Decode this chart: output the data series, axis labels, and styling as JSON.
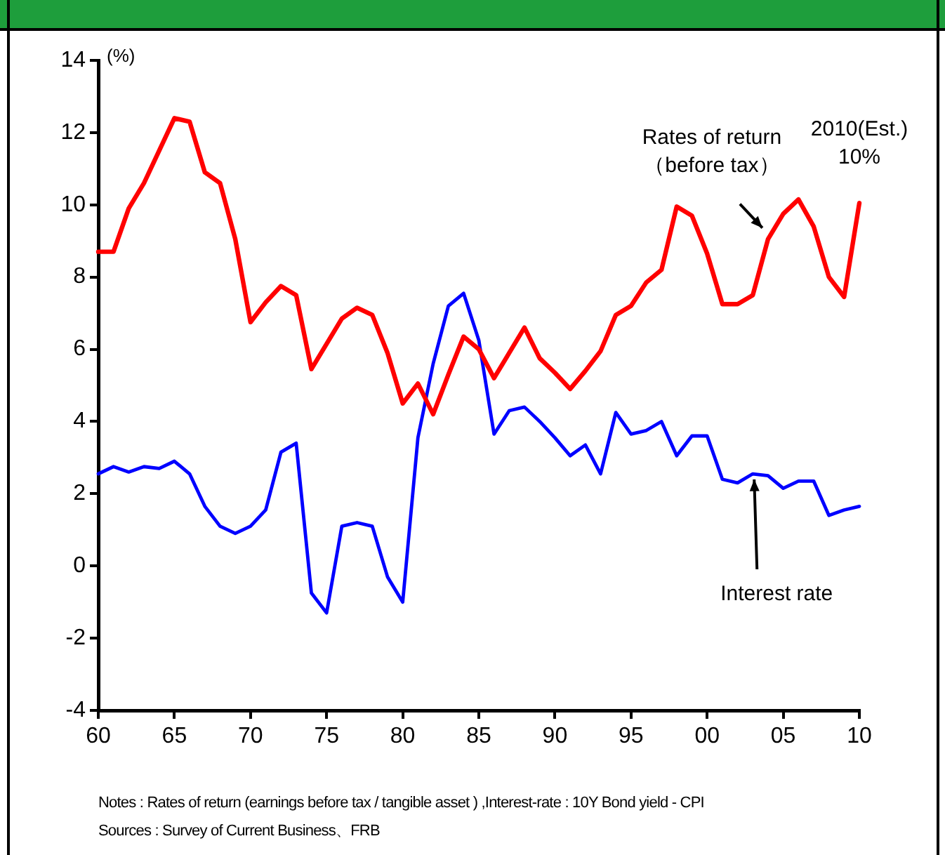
{
  "chart_data": {
    "type": "line",
    "ylabel": "(%)",
    "x": [
      1960,
      1961,
      1962,
      1963,
      1964,
      1965,
      1966,
      1967,
      1968,
      1969,
      1970,
      1971,
      1972,
      1973,
      1974,
      1975,
      1976,
      1977,
      1978,
      1979,
      1980,
      1981,
      1982,
      1983,
      1984,
      1985,
      1986,
      1987,
      1988,
      1989,
      1990,
      1991,
      1992,
      1993,
      1994,
      1995,
      1996,
      1997,
      1998,
      1999,
      2000,
      2001,
      2002,
      2003,
      2004,
      2005,
      2006,
      2007,
      2008,
      2009,
      2010
    ],
    "series": [
      {
        "color": "#ff0000",
        "values": [
          8.7,
          8.7,
          9.9,
          10.6,
          11.5,
          12.4,
          12.3,
          10.9,
          10.6,
          9.05,
          6.75,
          7.3,
          7.75,
          7.5,
          5.45,
          6.15,
          6.85,
          7.15,
          6.95,
          5.9,
          4.5,
          5.05,
          4.2,
          5.3,
          6.35,
          6.0,
          5.2,
          5.9,
          6.6,
          5.75,
          5.35,
          4.9,
          5.4,
          5.95,
          6.95,
          7.2,
          7.85,
          8.2,
          9.95,
          9.7,
          8.65,
          7.25,
          7.25,
          7.5,
          9.05,
          9.75,
          10.15,
          9.4,
          8.0,
          7.45,
          10.05
        ]
      },
      {
        "color": "#0000ff",
        "values": [
          2.55,
          2.75,
          2.6,
          2.75,
          2.7,
          2.9,
          2.55,
          1.65,
          1.1,
          0.9,
          1.1,
          1.55,
          3.15,
          3.4,
          -0.75,
          -1.3,
          1.1,
          1.2,
          1.1,
          -0.3,
          -1.0,
          3.55,
          5.6,
          7.2,
          7.55,
          6.25,
          3.65,
          4.3,
          4.4,
          4.0,
          3.55,
          3.05,
          3.35,
          2.55,
          4.25,
          3.65,
          3.75,
          4.0,
          3.05,
          3.6,
          3.6,
          2.4,
          2.3,
          2.55,
          2.5,
          2.15,
          2.35,
          2.35,
          1.4,
          1.55,
          1.65
        ]
      }
    ],
    "xlim": [
      1960,
      2010
    ],
    "xticks": [
      {
        "value": 1960,
        "label": "60"
      },
      {
        "value": 1965,
        "label": "65"
      },
      {
        "value": 1970,
        "label": "70"
      },
      {
        "value": 1975,
        "label": "75"
      },
      {
        "value": 1980,
        "label": "80"
      },
      {
        "value": 1985,
        "label": "85"
      },
      {
        "value": 1990,
        "label": "90"
      },
      {
        "value": 1995,
        "label": "95"
      },
      {
        "value": 2000,
        "label": "00"
      },
      {
        "value": 2005,
        "label": "05"
      },
      {
        "value": 2010,
        "label": "10"
      }
    ],
    "ylim": [
      -4,
      14
    ],
    "yticks": [
      -4,
      -2,
      0,
      2,
      4,
      6,
      8,
      10,
      12,
      14
    ],
    "grid": false,
    "legend": false,
    "marker": "none",
    "line_style": "solid",
    "annotations": [
      {
        "text": "Rates of return\n（before tax）",
        "x": 2004,
        "y": 9.05
      },
      {
        "text": "2010(Est.)\n10%",
        "x": 2010,
        "y": 10.05
      },
      {
        "text": "Interest rate",
        "x": 2003,
        "y": 2.55
      },
      "Notes : Rates of return (earnings before tax / tangible asset ) ,Interest-rate : 10Y Bond yield - CPI",
      "Sources : Survey of Current Business、FRB"
    ]
  }
}
